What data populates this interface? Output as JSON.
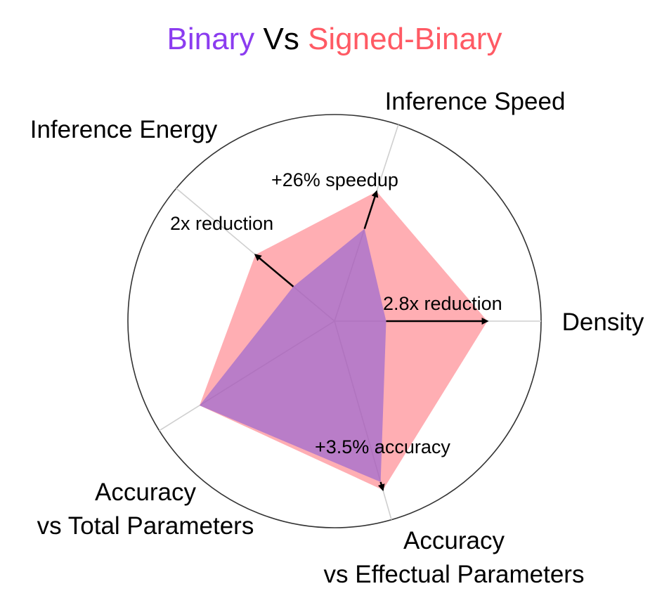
{
  "title": {
    "part1": "Binary",
    "part2": " Vs ",
    "part3": "Signed-Binary",
    "part1_color": "#8b3cf0",
    "part2_color": "#000000",
    "part3_color": "#ff5a64"
  },
  "chart_data": {
    "type": "radar",
    "axes": [
      "Inference Speed",
      "Density",
      "Accuracy vs Effectual Parameters",
      "Accuracy vs Total Parameters",
      "Inference Energy"
    ],
    "axis_label_lines": [
      [
        "Inference Speed"
      ],
      [
        "Density"
      ],
      [
        "Accuracy",
        "vs Effectual Parameters"
      ],
      [
        "Accuracy",
        "vs Total Parameters"
      ],
      [
        "Inference Energy"
      ]
    ],
    "series": [
      {
        "name": "Signed-Binary",
        "values": [
          0.66,
          0.74,
          0.85,
          0.77,
          0.5
        ],
        "color": "#ff6b74",
        "opacity": 0.55
      },
      {
        "name": "Binary",
        "values": [
          0.47,
          0.25,
          0.81,
          0.77,
          0.26
        ],
        "color": "#8b5cd6",
        "opacity": 0.6
      }
    ],
    "annotations": [
      {
        "text": "+26% speedup",
        "axis": 0,
        "from": 0.47,
        "to": 0.66
      },
      {
        "text": "2.8x reduction",
        "axis": 1,
        "from": 0.25,
        "to": 0.74
      },
      {
        "text": "+3.5% accuracy",
        "axis": 2,
        "from": 0.81,
        "to": 0.85
      },
      {
        "text": "2x reduction",
        "axis": 4,
        "from": 0.26,
        "to": 0.5
      }
    ],
    "range": [
      0,
      1
    ],
    "grid": true
  }
}
